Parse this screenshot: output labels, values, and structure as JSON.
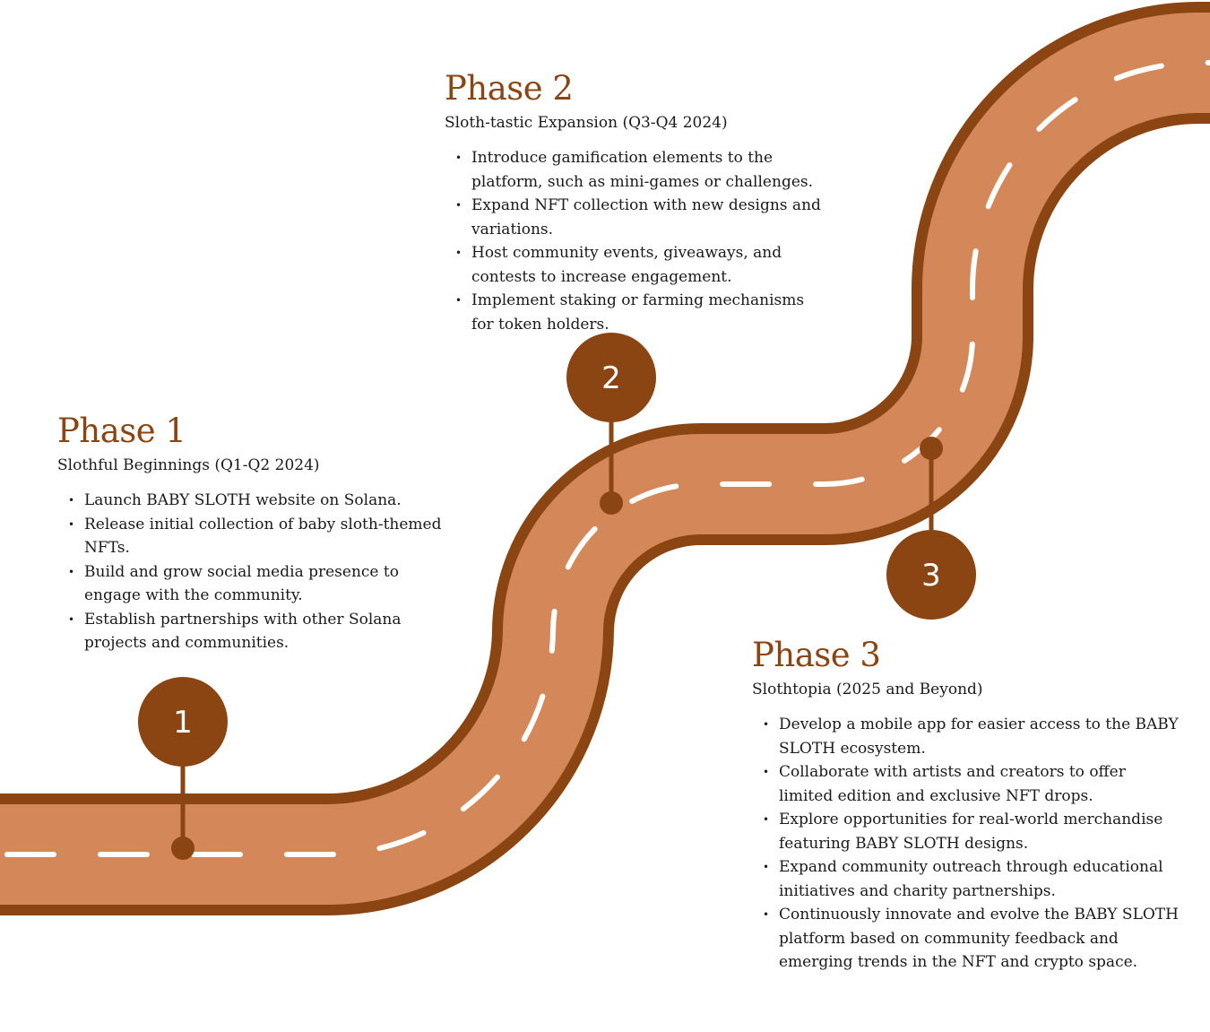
{
  "theme": {
    "brand_brown": "#8B4513",
    "road_fill": "#D4885A",
    "road_edge": "#8B4513",
    "dash": "#ffffff",
    "text": "#1a1a1a"
  },
  "phases": [
    {
      "number": "1",
      "title": "Phase 1",
      "subtitle": "Slothful Beginnings (Q1-Q2 2024)",
      "items": [
        "Launch BABY SLOTH website on Solana.",
        "Release initial collection of baby sloth-themed NFTs.",
        "Build and grow social media presence to engage with the community.",
        "Establish partnerships with other Solana projects and communities."
      ]
    },
    {
      "number": "2",
      "title": "Phase 2",
      "subtitle": "Sloth-tastic Expansion (Q3-Q4 2024)",
      "items": [
        "Introduce gamification elements to the platform, such as mini-games or challenges.",
        "Expand NFT collection with new designs and variations.",
        "Host community events, giveaways, and contests to increase engagement.",
        "Implement staking or farming mechanisms for token holders."
      ]
    },
    {
      "number": "3",
      "title": "Phase 3",
      "subtitle": "Slothtopia (2025 and Beyond)",
      "items": [
        "Develop a mobile app for easier access to the BABY SLOTH ecosystem.",
        "Collaborate with artists and creators to offer limited edition and exclusive NFT drops.",
        "Explore opportunities for real-world merchandise featuring BABY SLOTH designs.",
        "Expand community outreach through educational initiatives and charity partnerships.",
        "Continuously innovate and evolve the BABY SLOTH platform based on community feedback and emerging trends in the NFT and crypto space."
      ]
    }
  ]
}
